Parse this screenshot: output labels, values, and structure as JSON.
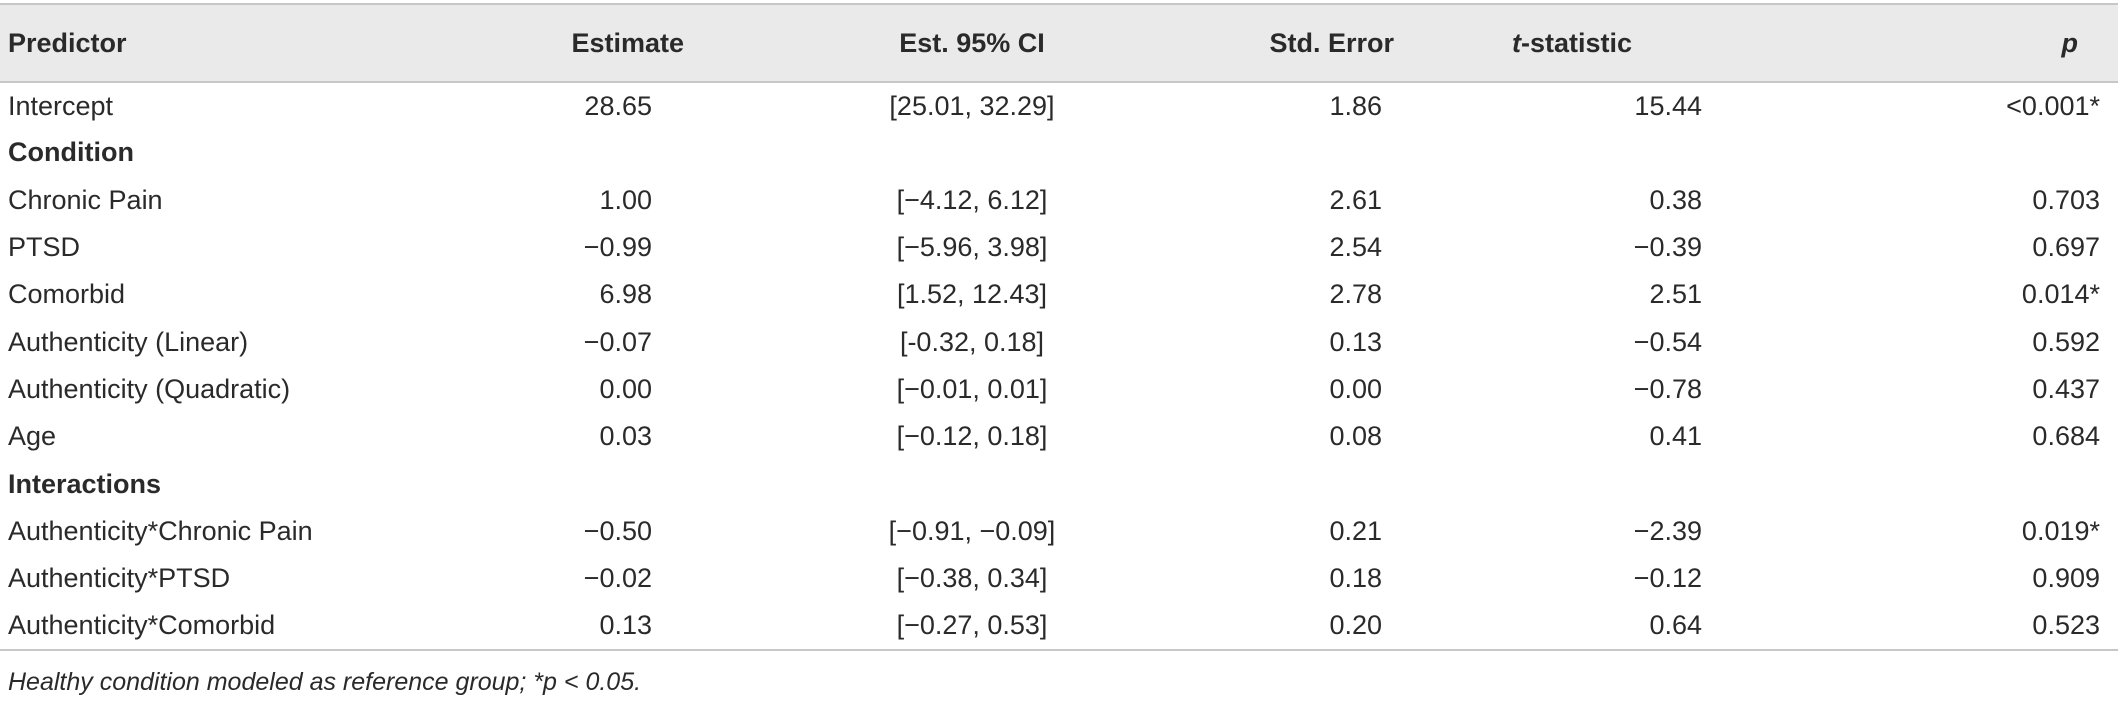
{
  "table": {
    "headers": {
      "predictor": "Predictor",
      "estimate": "Estimate",
      "ci": "Est. 95% CI",
      "se": "Std. Error",
      "t_prefix": "t",
      "t_suffix": "-statistic",
      "p": "p"
    },
    "rows": [
      {
        "type": "data",
        "predictor": "Intercept",
        "estimate": "28.65",
        "ci": "[25.01, 32.29]",
        "se": "1.86",
        "t": "15.44",
        "p": "<0.001*"
      },
      {
        "type": "section",
        "label": "Condition"
      },
      {
        "type": "data",
        "predictor": "Chronic Pain",
        "estimate": "1.00",
        "ci": "[−4.12, 6.12]",
        "se": "2.61",
        "t": "0.38",
        "p": "0.703"
      },
      {
        "type": "data",
        "predictor": "PTSD",
        "estimate": "−0.99",
        "ci": "[−5.96, 3.98]",
        "se": "2.54",
        "t": "−0.39",
        "p": "0.697"
      },
      {
        "type": "data",
        "predictor": "Comorbid",
        "estimate": "6.98",
        "ci": "[1.52, 12.43]",
        "se": "2.78",
        "t": "2.51",
        "p": "0.014*"
      },
      {
        "type": "data",
        "predictor": "Authenticity (Linear)",
        "estimate": "−0.07",
        "ci": "[-0.32, 0.18]",
        "se": "0.13",
        "t": "−0.54",
        "p": "0.592"
      },
      {
        "type": "data",
        "predictor": "Authenticity (Quadratic)",
        "estimate": "0.00",
        "ci": "[−0.01, 0.01]",
        "se": "0.00",
        "t": "−0.78",
        "p": "0.437"
      },
      {
        "type": "data",
        "predictor": "Age",
        "estimate": "0.03",
        "ci": "[−0.12, 0.18]",
        "se": "0.08",
        "t": "0.41",
        "p": "0.684"
      },
      {
        "type": "section",
        "label": "Interactions"
      },
      {
        "type": "data",
        "predictor": "Authenticity*Chronic Pain",
        "estimate": "−0.50",
        "ci": "[−0.91, −0.09]",
        "se": "0.21",
        "t": "−2.39",
        "p": "0.019*"
      },
      {
        "type": "data",
        "predictor": "Authenticity*PTSD",
        "estimate": "−0.02",
        "ci": "[−0.38, 0.34]",
        "se": "0.18",
        "t": "−0.12",
        "p": "0.909"
      },
      {
        "type": "data",
        "predictor": "Authenticity*Comorbid",
        "estimate": "0.13",
        "ci": "[−0.27, 0.53]",
        "se": "0.20",
        "t": "0.64",
        "p": "0.523"
      }
    ]
  },
  "footnote": "Healthy condition modeled as reference group; *p < 0.05."
}
